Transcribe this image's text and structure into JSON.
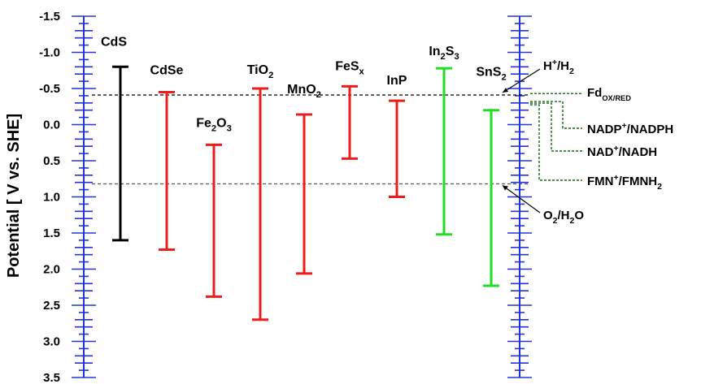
{
  "chart_data": {
    "type": "bar",
    "ylabel": "Potential [ V vs. SHE]",
    "ylim": [
      -1.5,
      3.5
    ],
    "y_inverted": true,
    "ticks": [
      "-1.5",
      "-1.0",
      "-0.5",
      "0.0",
      "0.5",
      "1.0",
      "1.5",
      "2.0",
      "2.5",
      "3.0",
      "3.5"
    ],
    "grid": false,
    "colors": {
      "axis": "#2233dd",
      "cds": "#000000",
      "oxide": "#ee1c1c",
      "sulfide": "#22dd22",
      "redox": "#116611"
    },
    "materials": [
      {
        "name": "CdS",
        "cb": -0.8,
        "vb": 1.6,
        "color": "#000000"
      },
      {
        "name": "CdSe",
        "cb": -0.45,
        "vb": 1.73,
        "color": "#ee1c1c"
      },
      {
        "name": "Fe₂O₃",
        "cb": 0.28,
        "vb": 2.38,
        "color": "#ee1c1c"
      },
      {
        "name": "TiO₂",
        "cb": -0.5,
        "vb": 2.7,
        "color": "#ee1c1c"
      },
      {
        "name": "MnO₂",
        "cb": -0.14,
        "vb": 2.06,
        "color": "#ee1c1c"
      },
      {
        "name": "FeSₓ",
        "cb": -0.53,
        "vb": 0.47,
        "color": "#ee1c1c"
      },
      {
        "name": "InP",
        "cb": -0.33,
        "vb": 1.0,
        "color": "#ee1c1c"
      },
      {
        "name": "In₂S₃",
        "cb": -0.78,
        "vb": 1.52,
        "color": "#22dd22"
      },
      {
        "name": "SnS₂",
        "cb": -0.2,
        "vb": 2.23,
        "color": "#22dd22"
      }
    ],
    "references": [
      {
        "name": "H⁺/H₂",
        "value": -0.41
      },
      {
        "name": "O₂/H₂O",
        "value": 0.82
      }
    ],
    "redox_couples": [
      {
        "name": "Fd",
        "sub": "OX/RED",
        "value": -0.43
      },
      {
        "name": "NADP⁺/NADPH",
        "value": -0.32
      },
      {
        "name": "NAD⁺/NADH",
        "value": -0.32
      },
      {
        "name": "FMN⁺/FMNH₂",
        "value": -0.22
      }
    ]
  }
}
